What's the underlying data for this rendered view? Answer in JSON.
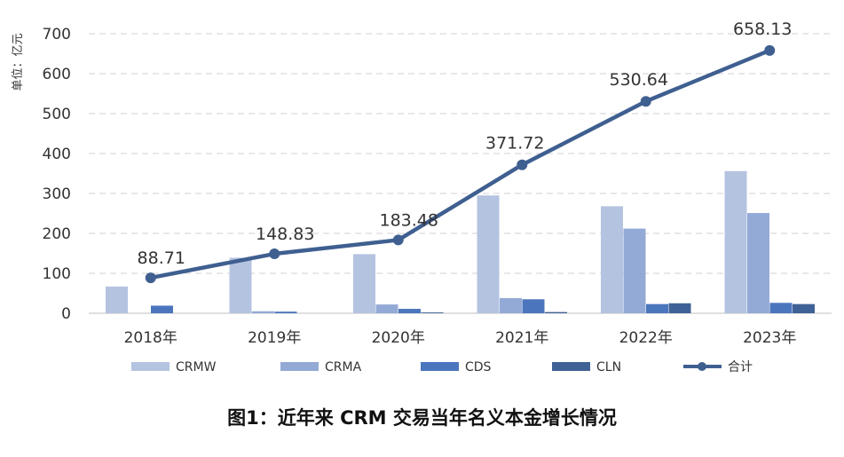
{
  "caption": "图1：近年来 CRM 交易当年名义本金增长情况",
  "chart_data": {
    "type": "bar",
    "ylabel": "单位：亿元",
    "ylim": [
      0,
      700
    ],
    "yticks": [
      0,
      100,
      200,
      300,
      400,
      500,
      600,
      700
    ],
    "grid": true,
    "legend_position": "bottom",
    "categories": [
      "2018年",
      "2019年",
      "2020年",
      "2021年",
      "2022年",
      "2023年"
    ],
    "series": [
      {
        "name": "CRMW",
        "type": "bar",
        "color": "#b4c3e0",
        "values": [
          67,
          139,
          148,
          295,
          268,
          356
        ]
      },
      {
        "name": "CRMA",
        "type": "bar",
        "color": "#94aad6",
        "values": [
          0,
          5,
          22,
          38,
          212,
          251
        ]
      },
      {
        "name": "CDS",
        "type": "bar",
        "color": "#4b76be",
        "values": [
          19,
          4,
          11,
          35,
          23,
          26
        ]
      },
      {
        "name": "CLN",
        "type": "bar",
        "color": "#3f6296",
        "values": [
          0,
          0,
          2,
          3,
          25,
          23
        ]
      },
      {
        "name": "合计",
        "type": "line",
        "color": "#3f5f90",
        "values": [
          88.71,
          148.83,
          183.48,
          371.72,
          530.64,
          658.13
        ],
        "labels": [
          "88.71",
          "148.83",
          "183.48",
          "371.72",
          "530.64",
          "658.13"
        ]
      }
    ]
  }
}
